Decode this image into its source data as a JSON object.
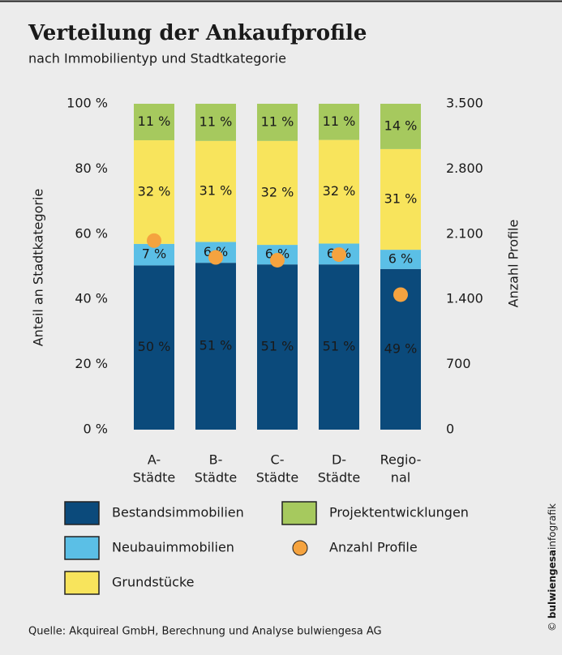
{
  "chart_data": {
    "type": "stacked-bar",
    "title": "Verteilung der Ankaufprofile",
    "subtitle": "nach Immobilientyp und Stadtkategorie",
    "ylabel": "Anteil an Stadtkategorie",
    "y2label": "Anzahl Profile",
    "source": "Quelle: Akquireal GmbH, Berechnung und Analyse bulwiengesa AG",
    "credit": [
      "©",
      "bulwiengesa",
      "infografik"
    ],
    "categories": [
      [
        "A-",
        "Städte"
      ],
      [
        "B-",
        "Städte"
      ],
      [
        "C-",
        "Städte"
      ],
      [
        "D-",
        "Städte"
      ],
      [
        "Regio-",
        "nal"
      ]
    ],
    "ylim": [
      0,
      100
    ],
    "yticks": [
      {
        "value": 0,
        "label": "0 %"
      },
      {
        "value": 20,
        "label": "20 %"
      },
      {
        "value": 40,
        "label": "40 %"
      },
      {
        "value": 60,
        "label": "60 %"
      },
      {
        "value": 80,
        "label": "80 %"
      },
      {
        "value": 100,
        "label": "100 %"
      }
    ],
    "y2lim": [
      0,
      3500
    ],
    "y2ticks": [
      0,
      700,
      {
        "value": 1400,
        "label": "1.400"
      },
      {
        "value": 2100,
        "label": "2.100"
      },
      {
        "value": 2800,
        "label": "2.800"
      },
      {
        "value": 3500,
        "label": "3.500"
      }
    ],
    "series": [
      {
        "name": "Bestandsimmobilien",
        "color": "#0b4a7b",
        "values": [
          50.4,
          51.2,
          50.7,
          50.7,
          49.3
        ],
        "value_labels": [
          "50 %",
          "51 %",
          "51 %",
          "51 %",
          "49 %"
        ]
      },
      {
        "name": "Neubauimmobilien",
        "color": "#5bbfe6",
        "values": [
          6.6,
          6.4,
          6.0,
          6.4,
          5.9
        ],
        "value_labels": [
          "7 %",
          "6 %",
          "6 %",
          "6 %",
          "6 %"
        ]
      },
      {
        "name": "Grundstücke",
        "color": "#f8e45c",
        "values": [
          31.8,
          31.0,
          31.9,
          31.8,
          30.9
        ],
        "value_labels": [
          "32 %",
          "31 %",
          "32 %",
          "32 %",
          "31 %"
        ]
      },
      {
        "name": "Projektentwicklungen",
        "color": "#a6c95e",
        "values": [
          11.2,
          11.4,
          11.4,
          11.1,
          13.9
        ],
        "value_labels": [
          "11 %",
          "11 %",
          "11 %",
          "11 %",
          "14 %"
        ]
      },
      {
        "name": "Anzahl Profile",
        "color": "#f5a33f",
        "axis": "y2",
        "values": [
          2030,
          1850,
          1820,
          1880,
          1450
        ]
      }
    ]
  }
}
